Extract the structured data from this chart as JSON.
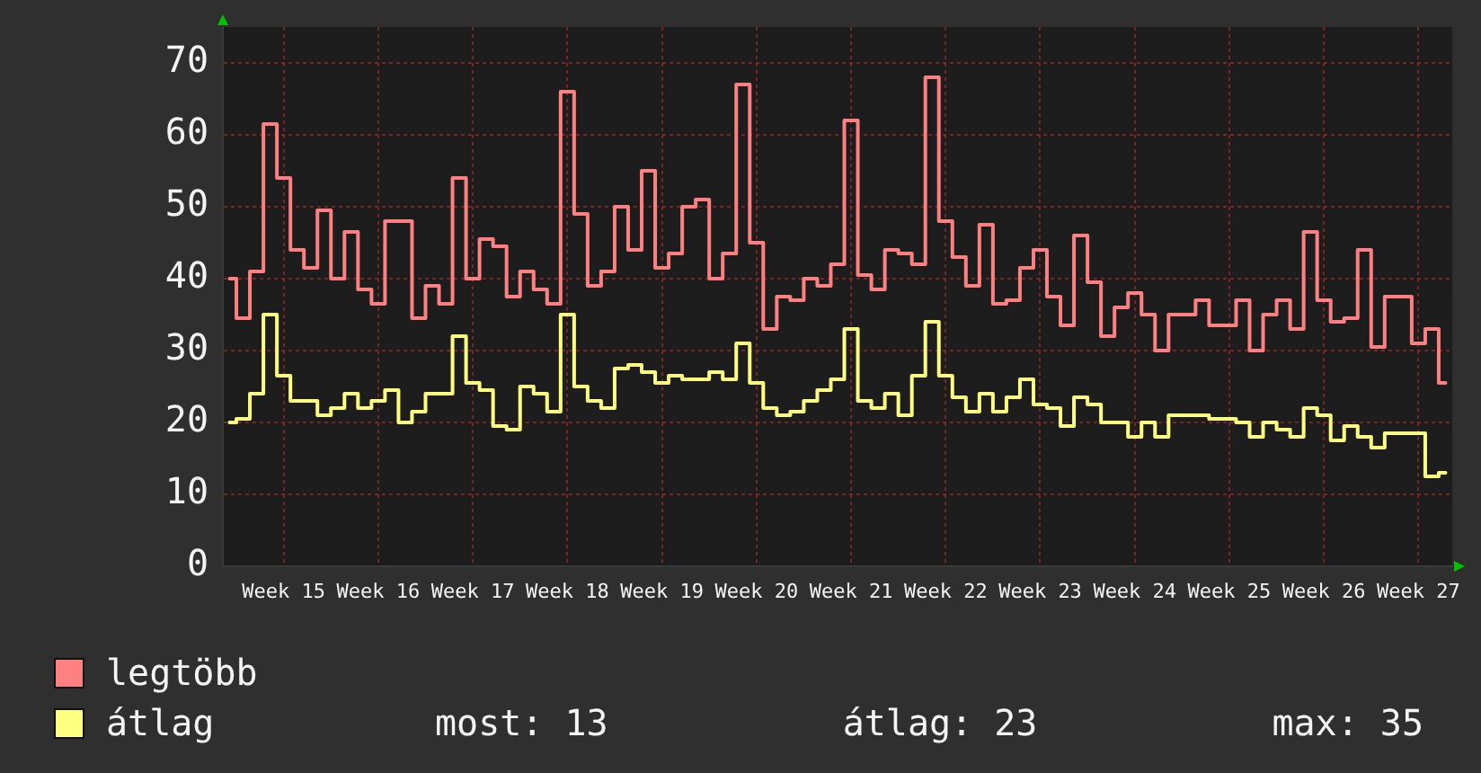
{
  "chart_data": {
    "type": "step",
    "categories": [
      null,
      null,
      null,
      null,
      "Week 15",
      null,
      null,
      null,
      null,
      null,
      null,
      "Week 16",
      null,
      null,
      null,
      null,
      null,
      null,
      "Week 17",
      null,
      null,
      null,
      null,
      null,
      null,
      "Week 18",
      null,
      null,
      null,
      null,
      null,
      null,
      "Week 19",
      null,
      null,
      null,
      null,
      null,
      null,
      "Week 20",
      null,
      null,
      null,
      null,
      null,
      null,
      "Week 21",
      null,
      null,
      null,
      null,
      null,
      null,
      "Week 22",
      null,
      null,
      null,
      null,
      null,
      null,
      "Week 23",
      null,
      null,
      null,
      null,
      null,
      null,
      "Week 24",
      null,
      null,
      null,
      null,
      null,
      null,
      "Week 25",
      null,
      null,
      null,
      null,
      null,
      null,
      "Week 26",
      null,
      null,
      null,
      null,
      null,
      null,
      "Week 27",
      null,
      null
    ],
    "series": [
      {
        "name": "legtöbb",
        "color": "#ff8080",
        "values": [
          40,
          34.5,
          41,
          61.5,
          54,
          44,
          41.5,
          49.5,
          40,
          46.5,
          38.5,
          36.5,
          48,
          48,
          34.5,
          39,
          36.5,
          54,
          40,
          45.5,
          44.5,
          37.5,
          41,
          38.5,
          36.5,
          66,
          49,
          39,
          41,
          50,
          44,
          55,
          41.5,
          43.5,
          50,
          51,
          40,
          43.5,
          67,
          45,
          33,
          37.5,
          37,
          40,
          39,
          42,
          62,
          40.5,
          38.5,
          44,
          43.5,
          42,
          68,
          48,
          43,
          39,
          47.5,
          36.5,
          37,
          41.5,
          44,
          37.5,
          33.5,
          46,
          39.5,
          32,
          36,
          38,
          35,
          30,
          35,
          35,
          37,
          33.5,
          33.5,
          37,
          30,
          35,
          37,
          33,
          46.5,
          37,
          34,
          34.5,
          44,
          30.5,
          37.5,
          37.5,
          31,
          33,
          25.5
        ]
      },
      {
        "name": "átlag",
        "color": "#ffff80",
        "values": [
          20,
          20.5,
          24,
          35,
          26.5,
          23,
          23,
          21,
          22,
          24,
          22,
          23,
          24.5,
          20,
          21.5,
          24,
          24,
          32,
          25.5,
          24.5,
          19.5,
          19,
          25,
          24,
          21.5,
          35,
          25,
          23,
          22,
          27.5,
          28,
          27,
          25.5,
          26.5,
          26,
          26,
          27,
          26,
          31,
          25.5,
          22,
          21,
          21.5,
          23,
          24.5,
          26,
          33,
          23,
          22,
          24,
          21,
          26.5,
          34,
          26.5,
          23.5,
          21.5,
          24,
          21.5,
          23.5,
          26,
          22.5,
          22,
          19.5,
          23.5,
          22.5,
          20,
          20,
          18,
          20,
          18,
          21,
          21,
          21,
          20.5,
          20.5,
          20,
          18,
          20,
          19,
          18,
          22,
          21,
          17.5,
          19.5,
          18,
          16.5,
          18.5,
          18.5,
          18.5,
          12.5,
          13
        ]
      }
    ],
    "ylim": [
      0,
      75
    ],
    "yticks": [
      0,
      10,
      20,
      30,
      40,
      50,
      60,
      70
    ],
    "grid": true,
    "legend": "bottom",
    "annotations": [
      "most: 13",
      "átlag: 23",
      "max: 35"
    ]
  }
}
